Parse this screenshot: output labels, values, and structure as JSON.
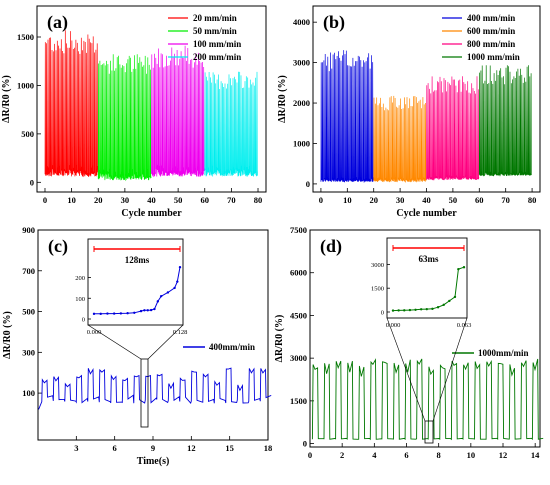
{
  "chart_data": [
    {
      "panel": "(a)",
      "type": "line",
      "xlabel": "Cycle number",
      "ylabel": "ΔR/R0 (%)",
      "xlim": [
        -3,
        83
      ],
      "ylim": [
        -100,
        1820
      ],
      "xticks": [
        0,
        10,
        20,
        30,
        40,
        50,
        60,
        70,
        80
      ],
      "yticks": [
        0,
        500,
        1000,
        1500
      ],
      "legend": "top-right",
      "series": [
        {
          "name": "20 mm/min",
          "color": "#ff0000",
          "x_range": [
            0,
            20
          ],
          "peak": 1450,
          "base": 60
        },
        {
          "name": "50 mm/min",
          "color": "#00ee00",
          "x_range": [
            20,
            40
          ],
          "peak": 1220,
          "base": 20
        },
        {
          "name": "100 mm/min",
          "color": "#ee00ee",
          "x_range": [
            40,
            60
          ],
          "peak": 1300,
          "base": 60
        },
        {
          "name": "200 mm/min",
          "color": "#00eeee",
          "x_range": [
            60,
            80
          ],
          "peak": 1050,
          "base": 60
        }
      ]
    },
    {
      "panel": "(b)",
      "type": "line",
      "xlabel": "Cycle number",
      "ylabel": "ΔR/R0 (%)",
      "xlim": [
        -3,
        83
      ],
      "ylim": [
        -200,
        4400
      ],
      "xticks": [
        0,
        10,
        20,
        30,
        40,
        50,
        60,
        70,
        80
      ],
      "yticks": [
        0,
        1000,
        2000,
        3000,
        4000
      ],
      "legend": "top-right",
      "series": [
        {
          "name": "400 mm/min",
          "color": "#0000dd",
          "x_range": [
            0,
            20
          ],
          "peak": 3050,
          "base": 50
        },
        {
          "name": "600 mm/min",
          "color": "#ff8800",
          "x_range": [
            20,
            40
          ],
          "peak": 2000,
          "base": 50
        },
        {
          "name": "800 mm/min",
          "color": "#ff0080",
          "x_range": [
            40,
            60
          ],
          "peak": 2450,
          "base": 100
        },
        {
          "name": "1000 mm/min",
          "color": "#007700",
          "x_range": [
            60,
            80
          ],
          "peak": 2700,
          "base": 200
        }
      ]
    },
    {
      "panel": "(c)",
      "type": "line",
      "xlabel": "Time(s)",
      "ylabel": "ΔR/R0 (%)",
      "xlim": [
        0,
        18
      ],
      "ylim": [
        -130,
        900
      ],
      "xticks": [
        3,
        6,
        9,
        12,
        15,
        18
      ],
      "yticks": [
        100,
        300,
        500,
        700,
        900
      ],
      "legend": "right",
      "series": [
        {
          "name": "400mm/min",
          "color": "#0000dd",
          "period": 0.9,
          "peak": 180,
          "base": 50
        }
      ],
      "inset": {
        "label": "128ms",
        "xticks": [
          "0.000",
          "0.128"
        ],
        "yticks": [
          "0",
          "100",
          "200"
        ],
        "points": [
          [
            0.0,
            25
          ],
          [
            0.01,
            25
          ],
          [
            0.02,
            26
          ],
          [
            0.03,
            26
          ],
          [
            0.04,
            27
          ],
          [
            0.05,
            28
          ],
          [
            0.06,
            30
          ],
          [
            0.07,
            38
          ],
          [
            0.075,
            42
          ],
          [
            0.08,
            42
          ],
          [
            0.085,
            43
          ],
          [
            0.09,
            48
          ],
          [
            0.095,
            85
          ],
          [
            0.1,
            110
          ],
          [
            0.11,
            128
          ],
          [
            0.12,
            150
          ],
          [
            0.124,
            180
          ],
          [
            0.128,
            250
          ]
        ]
      }
    },
    {
      "panel": "(d)",
      "type": "line",
      "xlabel": "",
      "ylabel": "ΔR/R0 (%)",
      "xlim": [
        0,
        14.3
      ],
      "ylim": [
        -120,
        7500
      ],
      "xticks": [
        0,
        2,
        4,
        6,
        8,
        10,
        12,
        14
      ],
      "yticks": [
        0,
        1500,
        3000,
        4500,
        6000,
        7500
      ],
      "legend": "right",
      "series": [
        {
          "name": "1000mm/min",
          "color": "#007700",
          "period": 0.72,
          "peak": 2800,
          "base": 150
        }
      ],
      "inset": {
        "label": "63ms",
        "xticks": [
          "0.000",
          "0.063"
        ],
        "yticks": [
          "0",
          "1500",
          "3000"
        ],
        "points": [
          [
            0.0,
            90
          ],
          [
            0.005,
            100
          ],
          [
            0.01,
            105
          ],
          [
            0.015,
            120
          ],
          [
            0.02,
            140
          ],
          [
            0.025,
            170
          ],
          [
            0.03,
            180
          ],
          [
            0.035,
            200
          ],
          [
            0.04,
            300
          ],
          [
            0.045,
            450
          ],
          [
            0.05,
            700
          ],
          [
            0.055,
            950
          ],
          [
            0.058,
            2700
          ],
          [
            0.063,
            2820
          ]
        ]
      }
    }
  ]
}
